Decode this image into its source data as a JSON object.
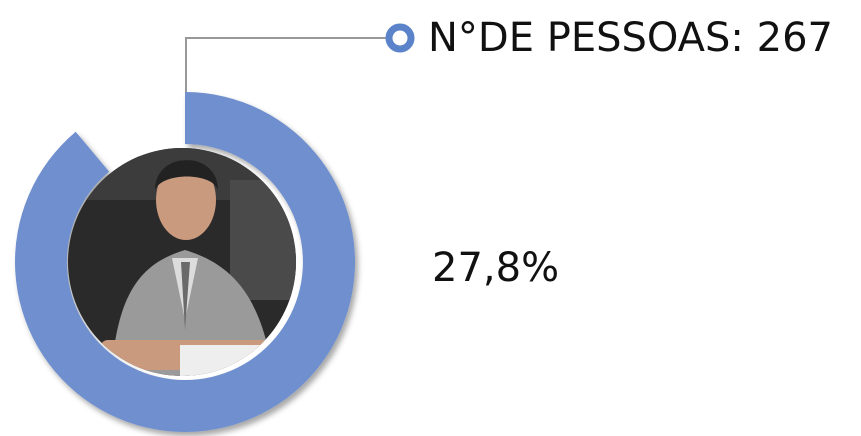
{
  "label": "N°DE PESSOAS: 267",
  "percentage": "27,8%"
}
